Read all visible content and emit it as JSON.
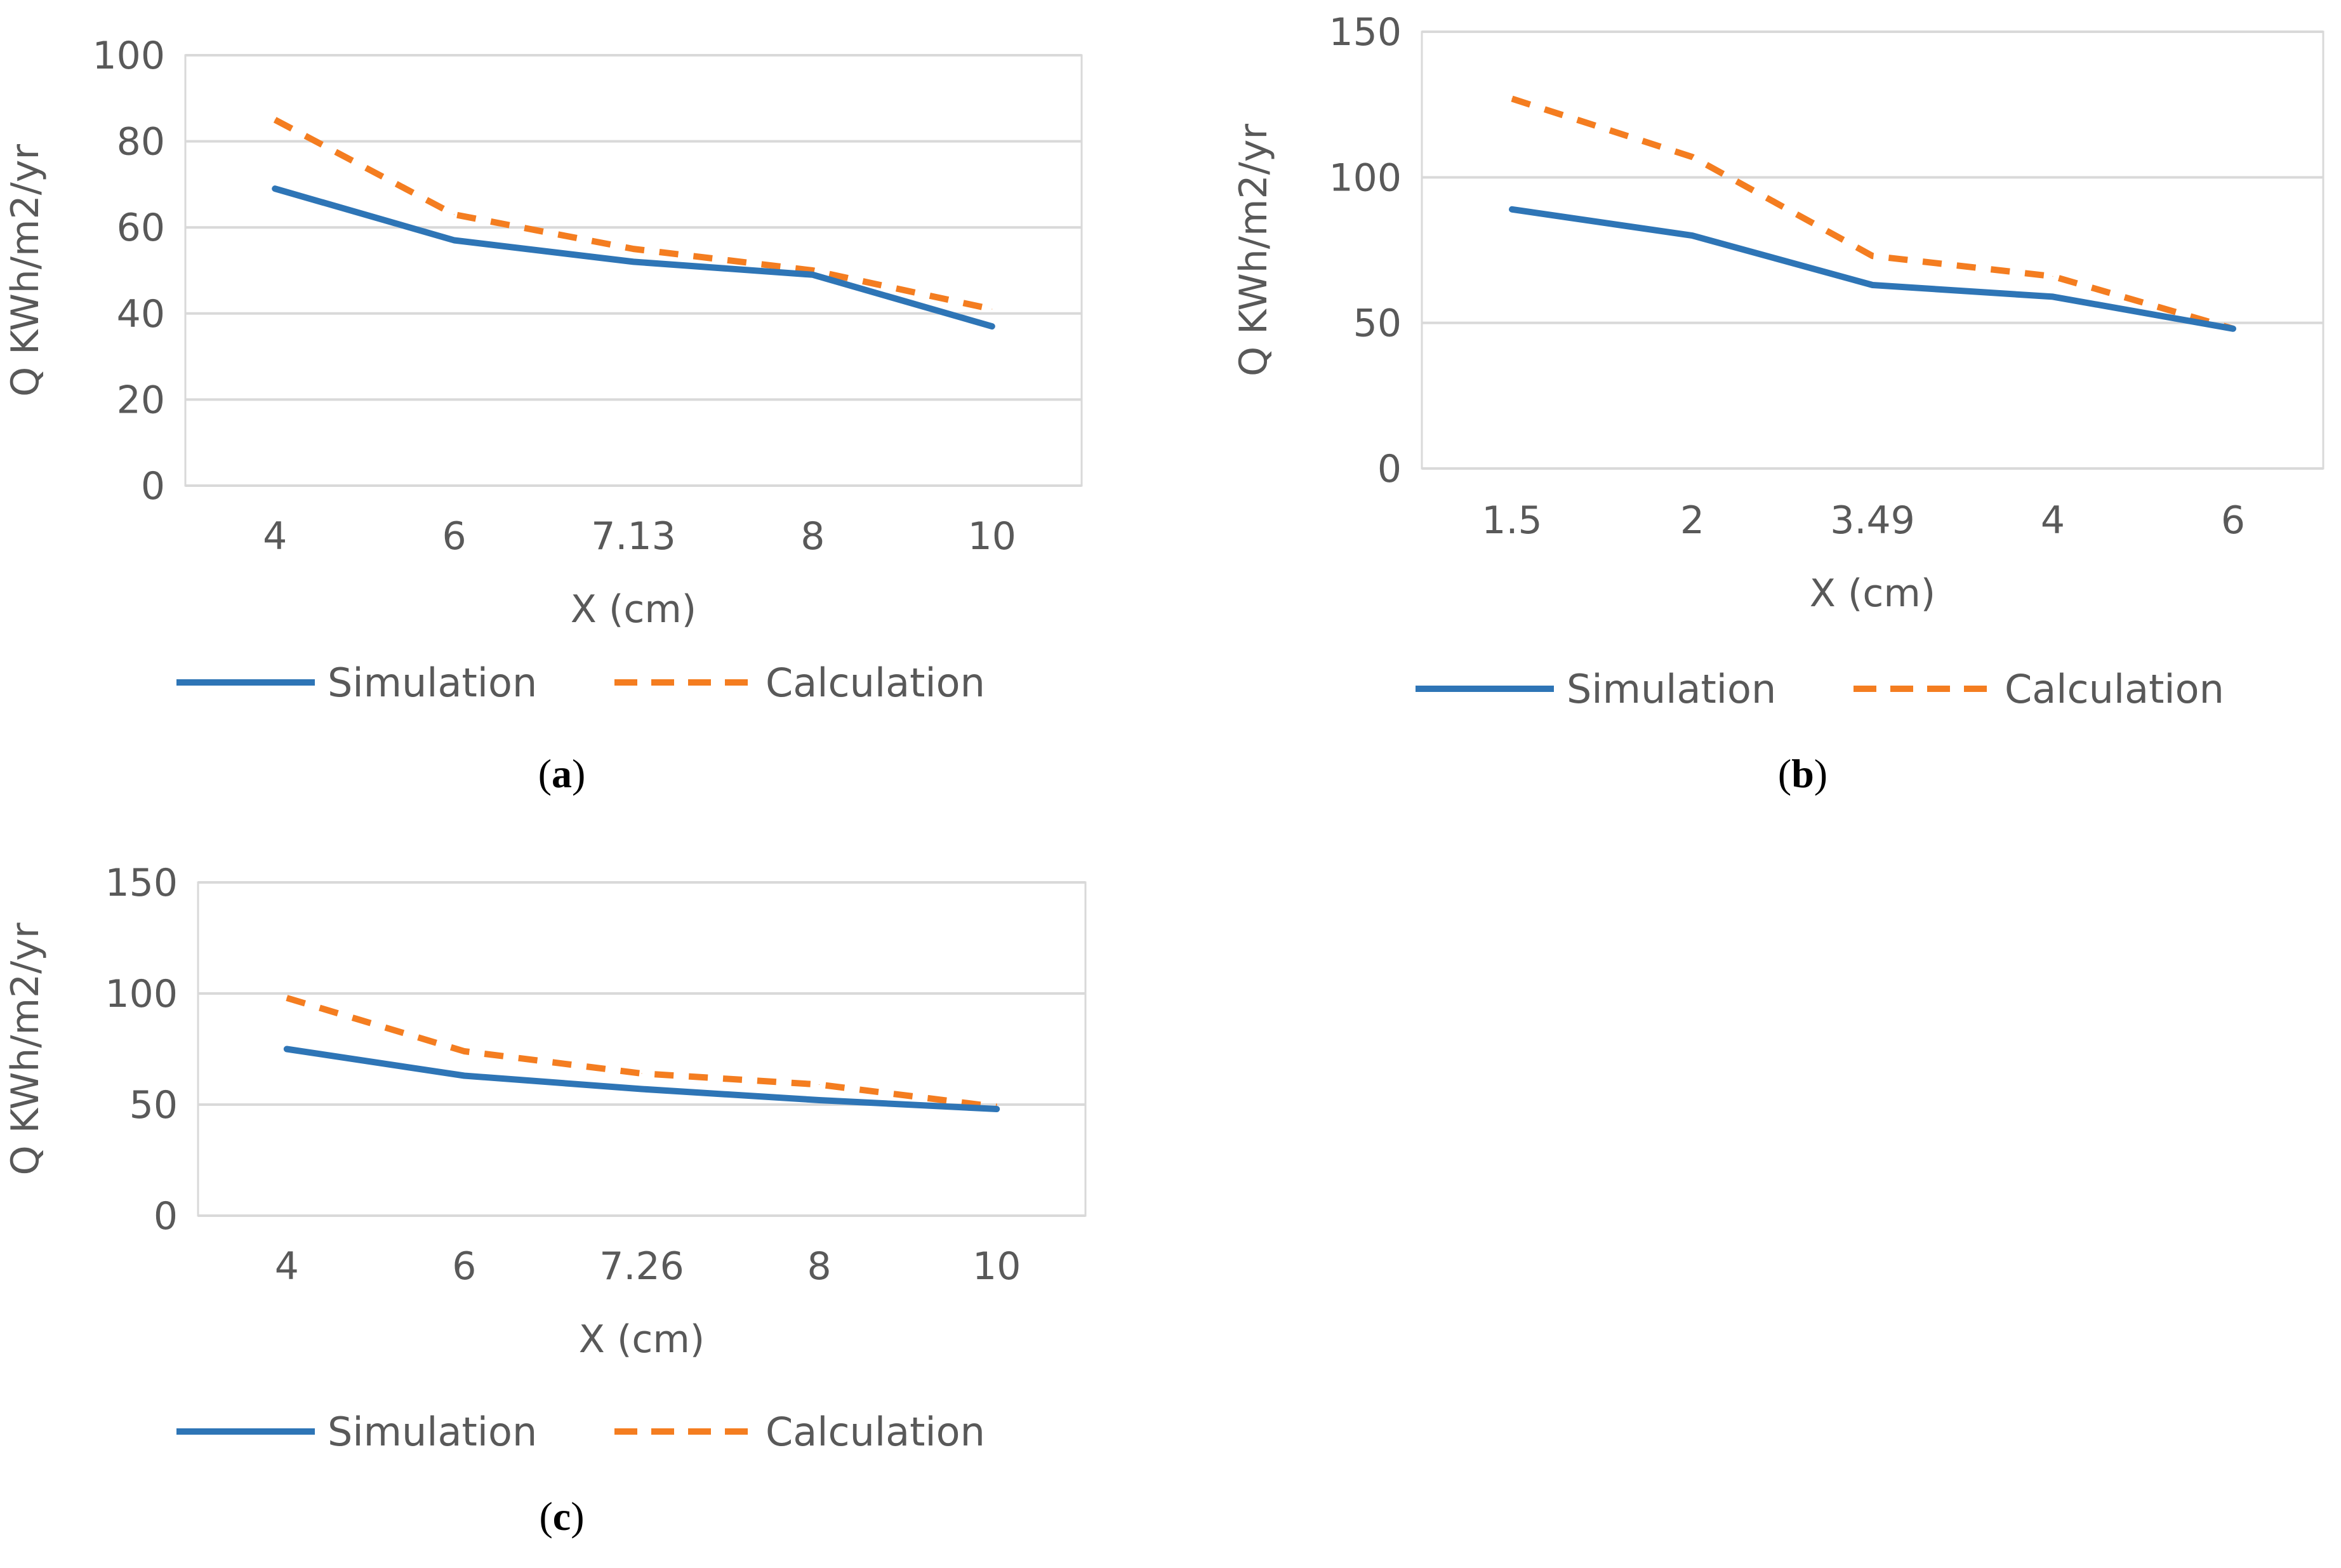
{
  "chart_data": [
    {
      "type": "line",
      "panel": "(a)",
      "caption": {
        "open": "(",
        "letter": "a",
        "close": ")"
      },
      "categories": [
        "4",
        "6",
        "7.13",
        "8",
        "10"
      ],
      "xlabel": "X (cm)",
      "ylabel": "Q KWh/m2/yr",
      "ylim": [
        0,
        100
      ],
      "yticks": [
        "0",
        "20",
        "40",
        "60",
        "80",
        "100"
      ],
      "grid": true,
      "legend_position": "bottom",
      "series": [
        {
          "name": "Simulation",
          "color": "#2E75B6",
          "style": "solid",
          "values": [
            69,
            57,
            52,
            49,
            37
          ]
        },
        {
          "name": "Calculation",
          "color": "#F47D20",
          "style": "dashed",
          "values": [
            85,
            63,
            55,
            50,
            41
          ]
        }
      ]
    },
    {
      "type": "line",
      "panel": "(b)",
      "caption": {
        "open": "(",
        "letter": "b",
        "close": ")"
      },
      "categories": [
        "1.5",
        "2",
        "3.49",
        "4",
        "6"
      ],
      "xlabel": "X (cm)",
      "ylabel": "Q KWh/m2/yr",
      "ylim": [
        0,
        150
      ],
      "yticks": [
        "0",
        "50",
        "100",
        "150"
      ],
      "grid": true,
      "legend_position": "bottom",
      "series": [
        {
          "name": "Simulation",
          "color": "#2E75B6",
          "style": "solid",
          "values": [
            89,
            80,
            63,
            59,
            48
          ]
        },
        {
          "name": "Calculation",
          "color": "#F47D20",
          "style": "dashed",
          "values": [
            127,
            107,
            73,
            66,
            48
          ]
        }
      ]
    },
    {
      "type": "line",
      "panel": "(c)",
      "caption": {
        "open": "(",
        "letter": "c",
        "close": ")"
      },
      "categories": [
        "4",
        "6",
        "7.26",
        "8",
        "10"
      ],
      "xlabel": "X (cm)",
      "ylabel": "Q KWh/m2/yr",
      "ylim": [
        0,
        150
      ],
      "yticks": [
        "0",
        "50",
        "100",
        "150"
      ],
      "grid": true,
      "legend_position": "bottom",
      "series": [
        {
          "name": "Simulation",
          "color": "#2E75B6",
          "style": "solid",
          "values": [
            75,
            63,
            57,
            52,
            48
          ]
        },
        {
          "name": "Calculation",
          "color": "#F47D20",
          "style": "dashed",
          "values": [
            98,
            74,
            64,
            59,
            49
          ]
        }
      ]
    }
  ],
  "colors": {
    "grid": "#D9D9D9",
    "text": "#595959"
  }
}
